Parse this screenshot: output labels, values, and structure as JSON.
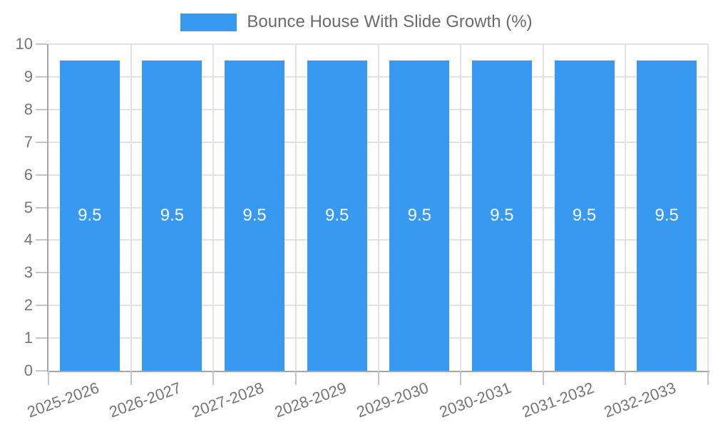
{
  "chart_data": {
    "type": "bar",
    "title": "Bounce House With Slide Growth (%)",
    "categories": [
      "2025-2026",
      "2026-2027",
      "2027-2028",
      "2028-2029",
      "2029-2030",
      "2030-2031",
      "2031-2032",
      "2032-2033"
    ],
    "values": [
      9.5,
      9.5,
      9.5,
      9.5,
      9.5,
      9.5,
      9.5,
      9.5
    ],
    "bar_value_labels": [
      "9.5",
      "9.5",
      "9.5",
      "9.5",
      "9.5",
      "9.5",
      "9.5",
      "9.5"
    ],
    "xlabel": "",
    "ylabel": "",
    "ylim": [
      0,
      10
    ],
    "ytick_step": 1,
    "ytick_labels": [
      "0",
      "1",
      "2",
      "3",
      "4",
      "5",
      "6",
      "7",
      "8",
      "9",
      "10"
    ],
    "grid": true,
    "legend": {
      "position": "top",
      "entries": [
        {
          "label": "Bounce House With Slide Growth (%)",
          "color": "#3899f0"
        }
      ]
    },
    "colors": {
      "bar": "#3899f0",
      "bar_value_label": "#ffffff",
      "grid_line": "#e2e2e2",
      "axis_line": "#a6a6a6",
      "tick_mark": "#c6c6c6",
      "tick_label": "#757575",
      "legend_text": "#6b6b6b",
      "background": "#ffffff"
    }
  }
}
